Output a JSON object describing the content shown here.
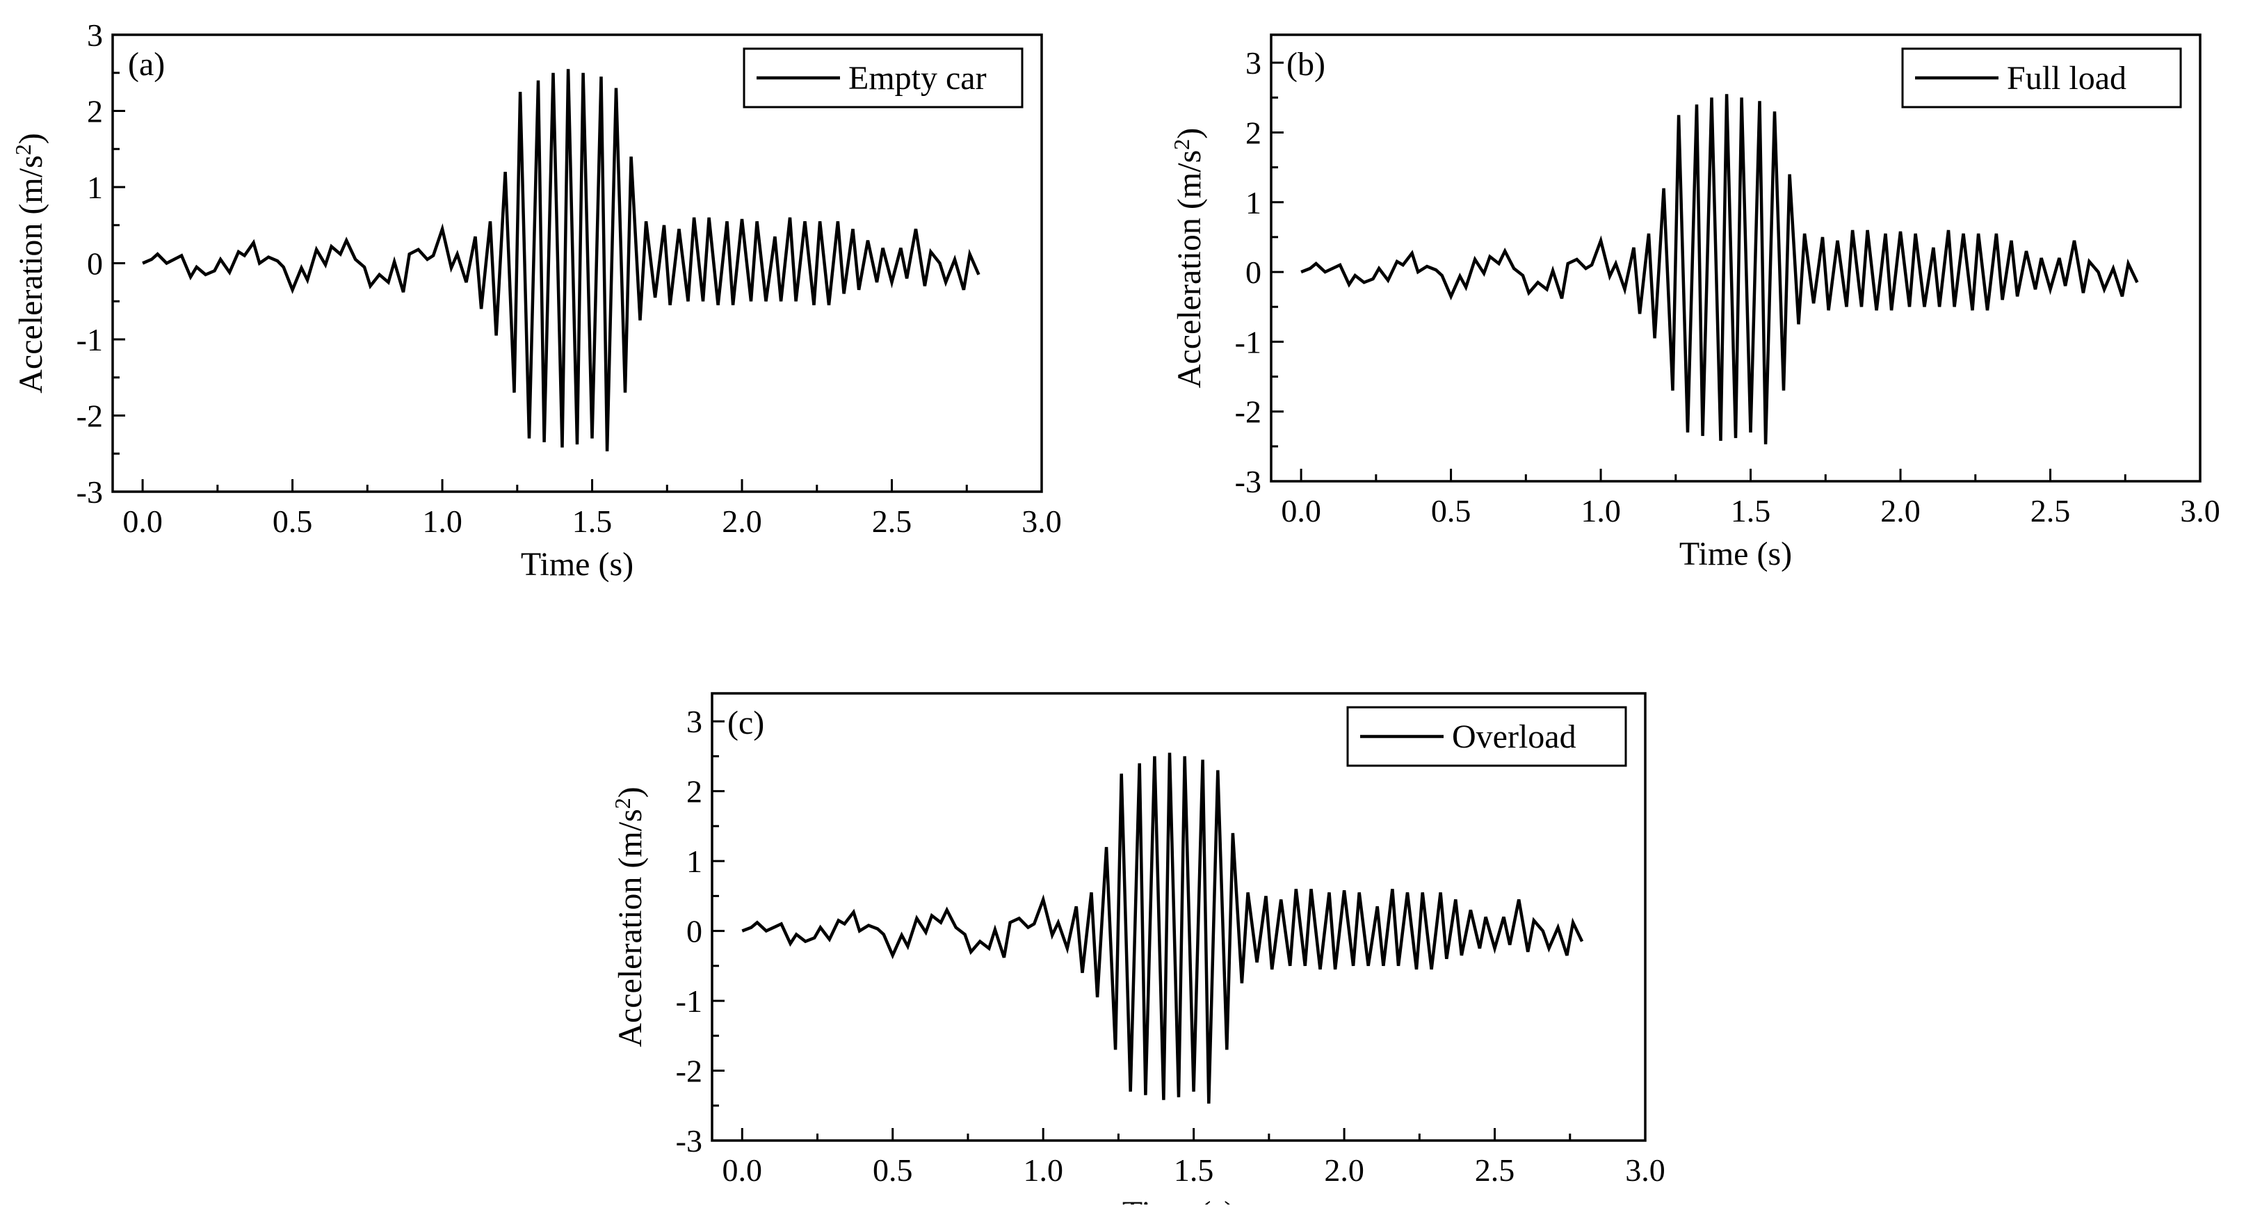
{
  "figure": {
    "panels": [
      {
        "id": "a",
        "label": "(a)",
        "legend": "Empty car"
      },
      {
        "id": "b",
        "label": "(b)",
        "legend": "Full load"
      },
      {
        "id": "c",
        "label": "(c)",
        "legend": "Overload"
      }
    ]
  },
  "chart_data": [
    {
      "type": "line",
      "panel": "(a)",
      "title": "",
      "xlabel": "Time (s)",
      "ylabel": "Acceleration (m/s2)",
      "xlim": [
        -0.1,
        3.0
      ],
      "ylim": [
        -3,
        3
      ],
      "xticks": [
        "0.0",
        "0.5",
        "1.0",
        "1.5",
        "2.0",
        "2.5",
        "3.0"
      ],
      "yticks": [
        "-3",
        "-2",
        "-1",
        "0",
        "1",
        "2",
        "3"
      ],
      "legend_position": "top-right",
      "series": [
        {
          "name": "Empty car",
          "x": [
            0.0,
            0.03,
            0.05,
            0.08,
            0.11,
            0.13,
            0.16,
            0.18,
            0.21,
            0.24,
            0.26,
            0.29,
            0.32,
            0.34,
            0.37,
            0.39,
            0.42,
            0.45,
            0.47,
            0.5,
            0.53,
            0.55,
            0.58,
            0.61,
            0.63,
            0.66,
            0.68,
            0.71,
            0.74,
            0.76,
            0.79,
            0.82,
            0.84,
            0.87,
            0.89,
            0.92,
            0.95,
            0.97,
            1.0,
            1.03,
            1.05,
            1.08,
            1.11,
            1.13,
            1.16,
            1.18,
            1.21,
            1.24,
            1.26,
            1.29,
            1.32,
            1.34,
            1.37,
            1.4,
            1.42,
            1.45,
            1.47,
            1.5,
            1.53,
            1.55,
            1.58,
            1.61,
            1.63,
            1.66,
            1.68,
            1.71,
            1.74,
            1.76,
            1.79,
            1.82,
            1.84,
            1.87,
            1.89,
            1.92,
            1.95,
            1.97,
            2.0,
            2.03,
            2.05,
            2.08,
            2.11,
            2.13,
            2.16,
            2.18,
            2.21,
            2.24,
            2.26,
            2.29,
            2.32,
            2.34,
            2.37,
            2.39,
            2.42,
            2.45,
            2.47,
            2.5,
            2.53,
            2.55,
            2.58,
            2.61,
            2.63,
            2.66,
            2.68,
            2.71,
            2.74,
            2.76,
            2.79
          ],
          "values": [
            0.0,
            0.05,
            0.12,
            0.0,
            0.06,
            0.1,
            -0.18,
            -0.05,
            -0.15,
            -0.1,
            0.05,
            -0.12,
            0.15,
            0.1,
            0.27,
            0.0,
            0.08,
            0.03,
            -0.05,
            -0.35,
            -0.06,
            -0.22,
            0.18,
            -0.02,
            0.22,
            0.12,
            0.3,
            0.05,
            -0.05,
            -0.3,
            -0.15,
            -0.25,
            0.02,
            -0.38,
            0.12,
            0.18,
            0.05,
            0.1,
            0.45,
            -0.06,
            0.12,
            -0.25,
            0.35,
            -0.6,
            0.55,
            -0.95,
            1.2,
            -1.7,
            2.25,
            -2.3,
            2.4,
            -2.35,
            2.5,
            -2.42,
            2.55,
            -2.38,
            2.5,
            -2.3,
            2.45,
            -2.47,
            2.3,
            -1.7,
            1.4,
            -0.75,
            0.55,
            -0.45,
            0.5,
            -0.55,
            0.45,
            -0.5,
            0.6,
            -0.5,
            0.6,
            -0.55,
            0.55,
            -0.55,
            0.58,
            -0.5,
            0.55,
            -0.5,
            0.35,
            -0.5,
            0.6,
            -0.5,
            0.55,
            -0.55,
            0.55,
            -0.55,
            0.55,
            -0.4,
            0.45,
            -0.35,
            0.3,
            -0.25,
            0.2,
            -0.25,
            0.2,
            -0.2,
            0.45,
            -0.3,
            0.15,
            0.0,
            -0.25,
            0.05,
            -0.35,
            0.12,
            -0.15
          ]
        }
      ]
    },
    {
      "type": "line",
      "panel": "(b)",
      "title": "",
      "xlabel": "Time (s)",
      "ylabel": "Acceleration (m/s2)",
      "xlim": [
        -0.1,
        3.0
      ],
      "ylim": [
        -3,
        3.4
      ],
      "xticks": [
        "0.0",
        "0.5",
        "1.0",
        "1.5",
        "2.0",
        "2.5",
        "3.0"
      ],
      "yticks": [
        "-3",
        "-2",
        "-1",
        "0",
        "1",
        "2",
        "3"
      ],
      "legend_position": "top-right",
      "series": [
        {
          "name": "Full load",
          "x": [
            0.0,
            0.03,
            0.05,
            0.08,
            0.11,
            0.13,
            0.16,
            0.18,
            0.21,
            0.24,
            0.26,
            0.29,
            0.32,
            0.34,
            0.37,
            0.39,
            0.42,
            0.45,
            0.47,
            0.5,
            0.53,
            0.55,
            0.58,
            0.61,
            0.63,
            0.66,
            0.68,
            0.71,
            0.74,
            0.76,
            0.79,
            0.82,
            0.84,
            0.87,
            0.89,
            0.92,
            0.95,
            0.97,
            1.0,
            1.03,
            1.05,
            1.08,
            1.11,
            1.13,
            1.16,
            1.18,
            1.21,
            1.24,
            1.26,
            1.29,
            1.32,
            1.34,
            1.37,
            1.4,
            1.42,
            1.45,
            1.47,
            1.5,
            1.53,
            1.55,
            1.58,
            1.61,
            1.63,
            1.66,
            1.68,
            1.71,
            1.74,
            1.76,
            1.79,
            1.82,
            1.84,
            1.87,
            1.89,
            1.92,
            1.95,
            1.97,
            2.0,
            2.03,
            2.05,
            2.08,
            2.11,
            2.13,
            2.16,
            2.18,
            2.21,
            2.24,
            2.26,
            2.29,
            2.32,
            2.34,
            2.37,
            2.39,
            2.42,
            2.45,
            2.47,
            2.5,
            2.53,
            2.55,
            2.58,
            2.61,
            2.63,
            2.66,
            2.68,
            2.71,
            2.74,
            2.76,
            2.79
          ],
          "values": [
            0.0,
            0.05,
            0.12,
            0.0,
            0.06,
            0.1,
            -0.18,
            -0.05,
            -0.15,
            -0.1,
            0.05,
            -0.12,
            0.15,
            0.1,
            0.27,
            0.0,
            0.08,
            0.03,
            -0.05,
            -0.35,
            -0.06,
            -0.22,
            0.18,
            -0.02,
            0.22,
            0.12,
            0.3,
            0.05,
            -0.05,
            -0.3,
            -0.15,
            -0.25,
            0.02,
            -0.38,
            0.12,
            0.18,
            0.05,
            0.1,
            0.45,
            -0.06,
            0.12,
            -0.25,
            0.35,
            -0.6,
            0.55,
            -0.95,
            1.2,
            -1.7,
            2.25,
            -2.3,
            2.4,
            -2.35,
            2.5,
            -2.42,
            2.55,
            -2.38,
            2.5,
            -2.3,
            2.45,
            -2.47,
            2.3,
            -1.7,
            1.4,
            -0.75,
            0.55,
            -0.45,
            0.5,
            -0.55,
            0.45,
            -0.5,
            0.6,
            -0.5,
            0.6,
            -0.55,
            0.55,
            -0.55,
            0.58,
            -0.5,
            0.55,
            -0.5,
            0.35,
            -0.5,
            0.6,
            -0.5,
            0.55,
            -0.55,
            0.55,
            -0.55,
            0.55,
            -0.4,
            0.45,
            -0.35,
            0.3,
            -0.25,
            0.2,
            -0.25,
            0.2,
            -0.2,
            0.45,
            -0.3,
            0.15,
            0.0,
            -0.25,
            0.05,
            -0.35,
            0.12,
            -0.15
          ]
        }
      ]
    },
    {
      "type": "line",
      "panel": "(c)",
      "title": "",
      "xlabel": "Time (s)",
      "ylabel": "Acceleration (m/s2)",
      "xlim": [
        -0.1,
        3.0
      ],
      "ylim": [
        -3,
        3.4
      ],
      "xticks": [
        "0.0",
        "0.5",
        "1.0",
        "1.5",
        "2.0",
        "2.5",
        "3.0"
      ],
      "yticks": [
        "-3",
        "-2",
        "-1",
        "0",
        "1",
        "2",
        "3"
      ],
      "legend_position": "top-right",
      "series": [
        {
          "name": "Overload",
          "x": [
            0.0,
            0.03,
            0.05,
            0.08,
            0.11,
            0.13,
            0.16,
            0.18,
            0.21,
            0.24,
            0.26,
            0.29,
            0.32,
            0.34,
            0.37,
            0.39,
            0.42,
            0.45,
            0.47,
            0.5,
            0.53,
            0.55,
            0.58,
            0.61,
            0.63,
            0.66,
            0.68,
            0.71,
            0.74,
            0.76,
            0.79,
            0.82,
            0.84,
            0.87,
            0.89,
            0.92,
            0.95,
            0.97,
            1.0,
            1.03,
            1.05,
            1.08,
            1.11,
            1.13,
            1.16,
            1.18,
            1.21,
            1.24,
            1.26,
            1.29,
            1.32,
            1.34,
            1.37,
            1.4,
            1.42,
            1.45,
            1.47,
            1.5,
            1.53,
            1.55,
            1.58,
            1.61,
            1.63,
            1.66,
            1.68,
            1.71,
            1.74,
            1.76,
            1.79,
            1.82,
            1.84,
            1.87,
            1.89,
            1.92,
            1.95,
            1.97,
            2.0,
            2.03,
            2.05,
            2.08,
            2.11,
            2.13,
            2.16,
            2.18,
            2.21,
            2.24,
            2.26,
            2.29,
            2.32,
            2.34,
            2.37,
            2.39,
            2.42,
            2.45,
            2.47,
            2.5,
            2.53,
            2.55,
            2.58,
            2.61,
            2.63,
            2.66,
            2.68,
            2.71,
            2.74,
            2.76,
            2.79
          ],
          "values": [
            0.0,
            0.05,
            0.12,
            0.0,
            0.06,
            0.1,
            -0.18,
            -0.05,
            -0.15,
            -0.1,
            0.05,
            -0.12,
            0.15,
            0.1,
            0.27,
            0.0,
            0.08,
            0.03,
            -0.05,
            -0.35,
            -0.06,
            -0.22,
            0.18,
            -0.02,
            0.22,
            0.12,
            0.3,
            0.05,
            -0.05,
            -0.3,
            -0.15,
            -0.25,
            0.02,
            -0.38,
            0.12,
            0.18,
            0.05,
            0.1,
            0.45,
            -0.06,
            0.12,
            -0.25,
            0.35,
            -0.6,
            0.55,
            -0.95,
            1.2,
            -1.7,
            2.25,
            -2.3,
            2.4,
            -2.35,
            2.5,
            -2.42,
            2.55,
            -2.38,
            2.5,
            -2.3,
            2.45,
            -2.47,
            2.3,
            -1.7,
            1.4,
            -0.75,
            0.55,
            -0.45,
            0.5,
            -0.55,
            0.45,
            -0.5,
            0.6,
            -0.5,
            0.6,
            -0.55,
            0.55,
            -0.55,
            0.58,
            -0.5,
            0.55,
            -0.5,
            0.35,
            -0.5,
            0.6,
            -0.5,
            0.55,
            -0.55,
            0.55,
            -0.55,
            0.55,
            -0.4,
            0.45,
            -0.35,
            0.3,
            -0.25,
            0.2,
            -0.25,
            0.2,
            -0.2,
            0.45,
            -0.3,
            0.15,
            0.0,
            -0.25,
            0.05,
            -0.35,
            0.12,
            -0.15
          ]
        }
      ]
    }
  ]
}
